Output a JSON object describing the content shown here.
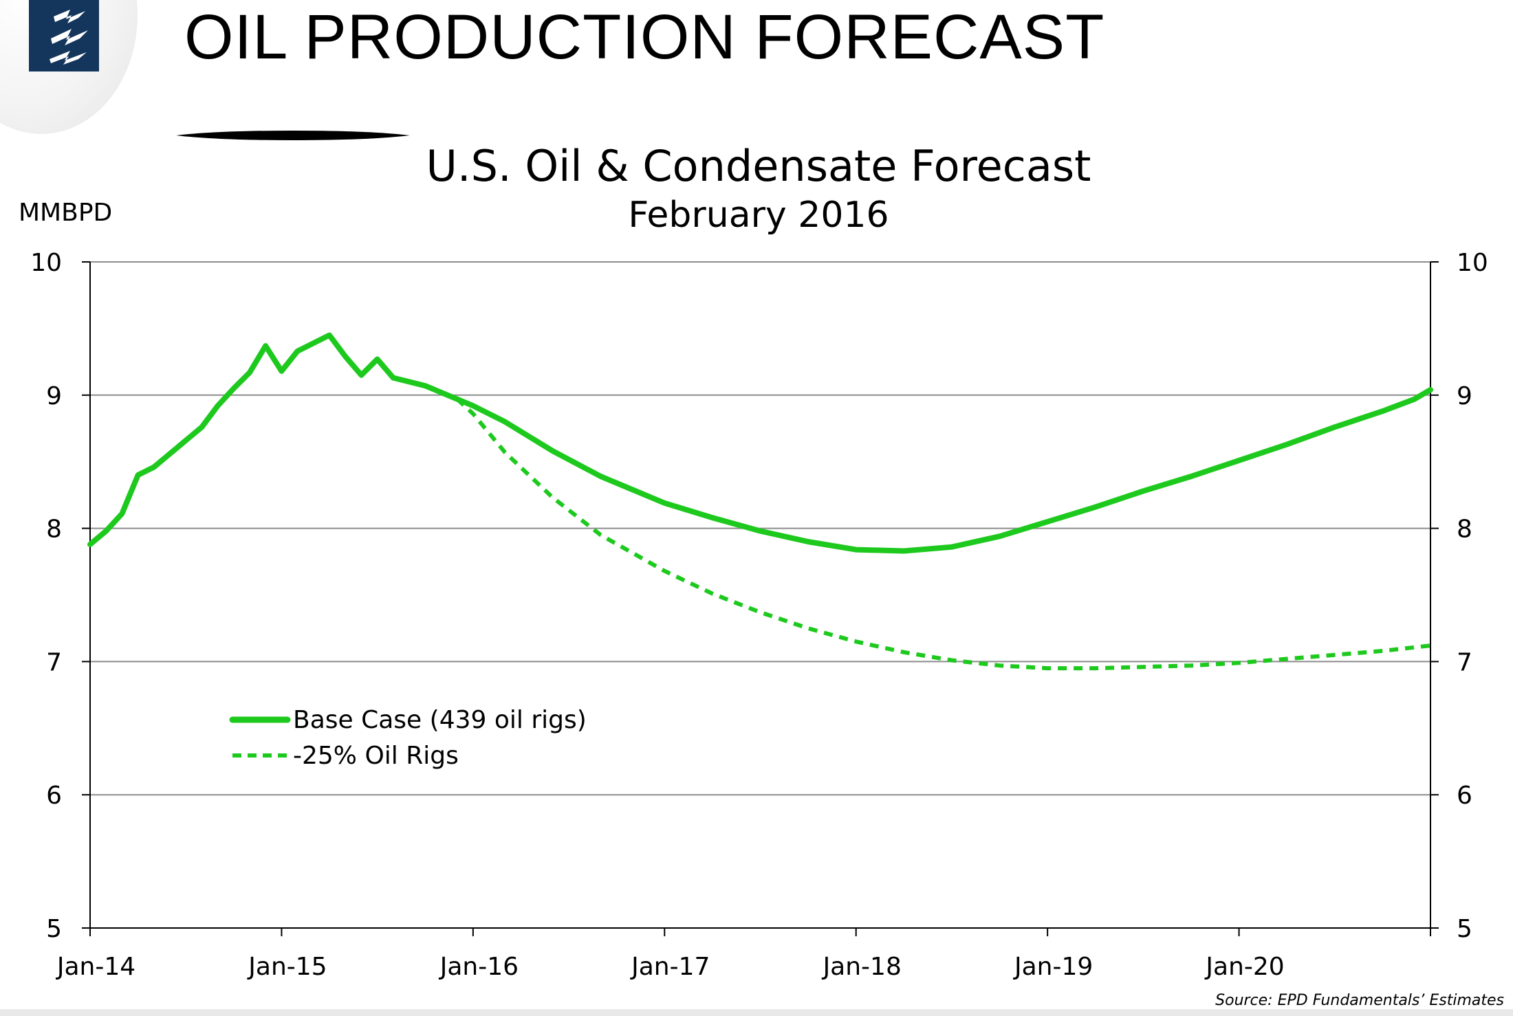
{
  "header": {
    "title": "OIL PRODUCTION FORECAST",
    "logo_icon": "lightning-bolt-logo",
    "logo_color": "#15365c"
  },
  "chart_data": {
    "type": "line",
    "title": "U.S. Oil & Condensate Forecast",
    "subtitle": "February 2016",
    "ylabel": "MMBPD",
    "ylim": [
      5,
      10
    ],
    "yticks": [
      5,
      6,
      7,
      8,
      9,
      10
    ],
    "y_right_axis": true,
    "xlim": [
      "2014-01",
      "2021-01"
    ],
    "xtick_labels": [
      "Jan-14",
      "Jan-15",
      "Jan-16",
      "Jan-17",
      "Jan-18",
      "Jan-19",
      "Jan-20"
    ],
    "grid": "horizontal",
    "legend_position": "lower-left",
    "source": "Source:  EPD Fundamentals’ Estimates",
    "series": [
      {
        "name": "Base Case (439 oil rigs)",
        "style": "solid",
        "color": "#1ec91e",
        "points": [
          [
            "2014-01",
            7.88
          ],
          [
            "2014-02",
            7.98
          ],
          [
            "2014-03",
            8.11
          ],
          [
            "2014-04",
            8.4
          ],
          [
            "2014-05",
            8.46
          ],
          [
            "2014-06",
            8.56
          ],
          [
            "2014-07",
            8.66
          ],
          [
            "2014-08",
            8.76
          ],
          [
            "2014-09",
            8.92
          ],
          [
            "2014-10",
            9.05
          ],
          [
            "2014-11",
            9.17
          ],
          [
            "2014-12",
            9.37
          ],
          [
            "2015-01",
            9.18
          ],
          [
            "2015-02",
            9.33
          ],
          [
            "2015-03",
            9.39
          ],
          [
            "2015-04",
            9.45
          ],
          [
            "2015-05",
            9.29
          ],
          [
            "2015-06",
            9.15
          ],
          [
            "2015-07",
            9.27
          ],
          [
            "2015-08",
            9.13
          ],
          [
            "2015-09",
            9.1
          ],
          [
            "2015-10",
            9.07
          ],
          [
            "2015-11",
            9.02
          ],
          [
            "2015-12",
            8.97
          ],
          [
            "2016-01",
            8.92
          ],
          [
            "2016-03",
            8.8
          ],
          [
            "2016-06",
            8.58
          ],
          [
            "2016-09",
            8.39
          ],
          [
            "2017-01",
            8.19
          ],
          [
            "2017-04",
            8.08
          ],
          [
            "2017-07",
            7.98
          ],
          [
            "2017-10",
            7.9
          ],
          [
            "2018-01",
            7.84
          ],
          [
            "2018-04",
            7.83
          ],
          [
            "2018-07",
            7.86
          ],
          [
            "2018-10",
            7.94
          ],
          [
            "2019-01",
            8.05
          ],
          [
            "2019-04",
            8.16
          ],
          [
            "2019-07",
            8.28
          ],
          [
            "2019-10",
            8.39
          ],
          [
            "2020-01",
            8.51
          ],
          [
            "2020-04",
            8.63
          ],
          [
            "2020-07",
            8.76
          ],
          [
            "2020-10",
            8.88
          ],
          [
            "2020-12",
            8.97
          ],
          [
            "2021-01",
            9.04
          ]
        ]
      },
      {
        "name": "-25% Oil Rigs",
        "style": "dashed",
        "color": "#1ec91e",
        "points": [
          [
            "2015-12",
            8.97
          ],
          [
            "2016-01",
            8.86
          ],
          [
            "2016-03",
            8.57
          ],
          [
            "2016-06",
            8.23
          ],
          [
            "2016-09",
            7.95
          ],
          [
            "2017-01",
            7.68
          ],
          [
            "2017-04",
            7.51
          ],
          [
            "2017-07",
            7.37
          ],
          [
            "2017-10",
            7.25
          ],
          [
            "2018-01",
            7.15
          ],
          [
            "2018-04",
            7.07
          ],
          [
            "2018-07",
            7.01
          ],
          [
            "2018-10",
            6.97
          ],
          [
            "2019-01",
            6.95
          ],
          [
            "2019-04",
            6.95
          ],
          [
            "2019-07",
            6.96
          ],
          [
            "2019-10",
            6.97
          ],
          [
            "2020-01",
            6.99
          ],
          [
            "2020-04",
            7.02
          ],
          [
            "2020-07",
            7.05
          ],
          [
            "2020-10",
            7.08
          ],
          [
            "2021-01",
            7.12
          ]
        ]
      }
    ]
  }
}
